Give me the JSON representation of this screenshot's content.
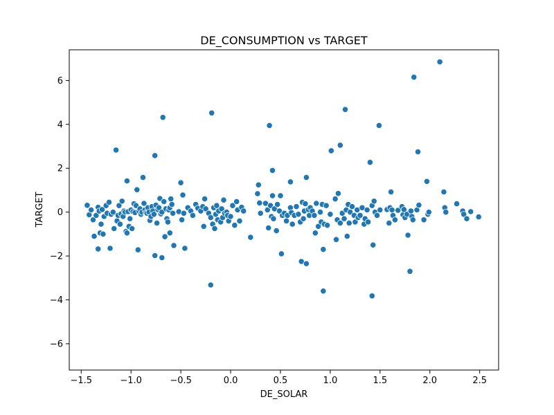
{
  "chart_data": {
    "type": "scatter",
    "title": "DE_CONSUMPTION vs TARGET",
    "xlabel": "DE_SOLAR",
    "ylabel": "TARGET",
    "xlim": [
      -1.62,
      2.69
    ],
    "ylim": [
      -7.2,
      7.4
    ],
    "xticks": [
      -1.5,
      -1.0,
      -0.5,
      0.0,
      0.5,
      1.0,
      1.5,
      2.0,
      2.5
    ],
    "xtick_labels": [
      "−1.5",
      "−1.0",
      "−0.5",
      "0.0",
      "0.5",
      "1.0",
      "1.5",
      "2.0",
      "2.5"
    ],
    "yticks": [
      -6,
      -4,
      -2,
      0,
      2,
      4,
      6
    ],
    "ytick_labels": [
      "−6",
      "−4",
      "−2",
      "0",
      "2",
      "4",
      "6"
    ],
    "grid": false,
    "legend": false,
    "marker_color": "#1f77b4",
    "points": [
      [
        -1.44,
        0.31
      ],
      [
        -1.42,
        -0.12
      ],
      [
        -1.4,
        0.1
      ],
      [
        -1.38,
        -0.35
      ],
      [
        -1.37,
        -1.1
      ],
      [
        -1.35,
        -0.15
      ],
      [
        -1.33,
        0.22
      ],
      [
        -1.33,
        -1.68
      ],
      [
        -1.32,
        0.05
      ],
      [
        -1.31,
        -0.95
      ],
      [
        -1.3,
        -0.55
      ],
      [
        -1.29,
        0.12
      ],
      [
        -1.28,
        -1.0
      ],
      [
        -1.27,
        -0.2
      ],
      [
        -1.25,
        0.3
      ],
      [
        -1.24,
        -0.05
      ],
      [
        -1.22,
        0.45
      ],
      [
        -1.21,
        -1.65
      ],
      [
        -1.2,
        -0.1
      ],
      [
        -1.18,
        0.0
      ],
      [
        -1.17,
        -0.75
      ],
      [
        -1.15,
        2.83
      ],
      [
        -1.14,
        -0.4
      ],
      [
        -1.13,
        -0.15
      ],
      [
        -1.12,
        0.3
      ],
      [
        -1.11,
        -0.55
      ],
      [
        -1.1,
        -0.08
      ],
      [
        -1.09,
        0.5
      ],
      [
        -1.08,
        -0.2
      ],
      [
        -1.07,
        0.05
      ],
      [
        -1.06,
        0.0
      ],
      [
        -1.05,
        -0.88
      ],
      [
        -1.04,
        -0.95
      ],
      [
        -1.04,
        1.42
      ],
      [
        -1.03,
        0.02
      ],
      [
        -1.02,
        -0.65
      ],
      [
        -1.01,
        -0.3
      ],
      [
        -1.0,
        0.1
      ],
      [
        -0.99,
        -0.75
      ],
      [
        -0.98,
        0.02
      ],
      [
        -0.97,
        0.38
      ],
      [
        -0.96,
        -0.02
      ],
      [
        -0.95,
        0.3
      ],
      [
        -0.94,
        1.02
      ],
      [
        -0.93,
        -1.72
      ],
      [
        -0.92,
        0.05
      ],
      [
        -0.91,
        0.15
      ],
      [
        -0.9,
        -0.1
      ],
      [
        -0.89,
        0.0
      ],
      [
        -0.88,
        1.58
      ],
      [
        -0.87,
        0.4
      ],
      [
        -0.86,
        0.1
      ],
      [
        -0.85,
        -0.02
      ],
      [
        -0.84,
        -0.05
      ],
      [
        -0.83,
        0.2
      ],
      [
        -0.82,
        0.0
      ],
      [
        -0.81,
        -0.38
      ],
      [
        -0.8,
        -0.2
      ],
      [
        -0.79,
        0.25
      ],
      [
        -0.78,
        0.05
      ],
      [
        -0.77,
        -0.1
      ],
      [
        -0.76,
        2.58
      ],
      [
        -0.76,
        -1.98
      ],
      [
        -0.75,
        0.32
      ],
      [
        -0.74,
        -0.5
      ],
      [
        -0.73,
        0.12
      ],
      [
        -0.72,
        0.2
      ],
      [
        -0.71,
        0.62
      ],
      [
        -0.7,
        -0.08
      ],
      [
        -0.69,
        0.0
      ],
      [
        -0.69,
        -2.08
      ],
      [
        -0.68,
        4.32
      ],
      [
        -0.67,
        0.48
      ],
      [
        -0.66,
        -1.12
      ],
      [
        -0.65,
        0.15
      ],
      [
        -0.64,
        -0.3
      ],
      [
        -0.63,
        -0.45
      ],
      [
        -0.62,
        0.1
      ],
      [
        -0.61,
        0.2
      ],
      [
        -0.61,
        -0.95
      ],
      [
        -0.6,
        0.6
      ],
      [
        -0.59,
        0.35
      ],
      [
        -0.58,
        -0.05
      ],
      [
        -0.57,
        -1.52
      ],
      [
        -0.52,
        0.02
      ],
      [
        -0.5,
        1.34
      ],
      [
        -0.49,
        -0.35
      ],
      [
        -0.48,
        0.78
      ],
      [
        -0.47,
        -0.05
      ],
      [
        -0.46,
        -1.65
      ],
      [
        -0.43,
        0.2
      ],
      [
        -0.4,
        0.05
      ],
      [
        -0.38,
        -0.15
      ],
      [
        -0.35,
        0.35
      ],
      [
        -0.33,
        0.18
      ],
      [
        -0.3,
        0.05
      ],
      [
        -0.28,
        0.25
      ],
      [
        -0.27,
        -0.65
      ],
      [
        -0.26,
        0.6
      ],
      [
        -0.25,
        0.15
      ],
      [
        -0.22,
        -0.05
      ],
      [
        -0.2,
        -0.25
      ],
      [
        -0.2,
        -3.32
      ],
      [
        -0.19,
        4.52
      ],
      [
        -0.18,
        -0.55
      ],
      [
        -0.17,
        0.2
      ],
      [
        -0.16,
        -0.75
      ],
      [
        -0.15,
        -0.1
      ],
      [
        -0.14,
        0.3
      ],
      [
        -0.13,
        -0.35
      ],
      [
        -0.12,
        0.05
      ],
      [
        -0.1,
        -0.45
      ],
      [
        -0.09,
        0.15
      ],
      [
        -0.08,
        -0.25
      ],
      [
        -0.07,
        0.55
      ],
      [
        -0.06,
        -0.05
      ],
      [
        -0.04,
        0.0
      ],
      [
        -0.03,
        -0.15
      ],
      [
        -0.02,
        -0.4
      ],
      [
        0.0,
        -0.2
      ],
      [
        0.02,
        0.3
      ],
      [
        0.04,
        -0.6
      ],
      [
        0.06,
        0.48
      ],
      [
        0.07,
        0.1
      ],
      [
        0.09,
        -0.4
      ],
      [
        0.11,
        0.22
      ],
      [
        0.13,
        0.05
      ],
      [
        0.2,
        -1.15
      ],
      [
        0.27,
        0.84
      ],
      [
        0.28,
        1.24
      ],
      [
        0.29,
        0.42
      ],
      [
        0.3,
        -0.05
      ],
      [
        0.35,
        0.4
      ],
      [
        0.37,
        0.1
      ],
      [
        0.38,
        -0.72
      ],
      [
        0.39,
        3.95
      ],
      [
        0.4,
        0.3
      ],
      [
        0.41,
        -0.2
      ],
      [
        0.42,
        0.75
      ],
      [
        0.42,
        1.9
      ],
      [
        0.43,
        -0.3
      ],
      [
        0.44,
        0.15
      ],
      [
        0.46,
        -0.85
      ],
      [
        0.47,
        0.35
      ],
      [
        0.49,
        0.05
      ],
      [
        0.5,
        0.75
      ],
      [
        0.51,
        -1.9
      ],
      [
        0.52,
        -0.15
      ],
      [
        0.54,
        -0.05
      ],
      [
        0.56,
        -0.4
      ],
      [
        0.57,
        -0.15
      ],
      [
        0.6,
        1.38
      ],
      [
        0.6,
        0.2
      ],
      [
        0.61,
        -0.02
      ],
      [
        0.62,
        -0.55
      ],
      [
        0.64,
        -0.15
      ],
      [
        0.66,
        0.25
      ],
      [
        0.68,
        -0.1
      ],
      [
        0.7,
        -0.45
      ],
      [
        0.71,
        -2.25
      ],
      [
        0.72,
        0.45
      ],
      [
        0.73,
        -0.3
      ],
      [
        0.74,
        0.05
      ],
      [
        0.75,
        0.38
      ],
      [
        0.76,
        1.58
      ],
      [
        0.76,
        -2.35
      ],
      [
        0.78,
        0.12
      ],
      [
        0.79,
        -0.15
      ],
      [
        0.8,
        0.2
      ],
      [
        0.82,
        0.05
      ],
      [
        0.84,
        -0.15
      ],
      [
        0.85,
        -0.95
      ],
      [
        0.86,
        0.4
      ],
      [
        0.88,
        -0.65
      ],
      [
        0.9,
        0.0
      ],
      [
        0.91,
        -0.45
      ],
      [
        0.92,
        0.35
      ],
      [
        0.93,
        -3.6
      ],
      [
        0.93,
        -1.7
      ],
      [
        0.94,
        -0.55
      ],
      [
        0.96,
        0.3
      ],
      [
        0.97,
        -0.6
      ],
      [
        1.0,
        -0.1
      ],
      [
        1.01,
        2.8
      ],
      [
        1.05,
        0.6
      ],
      [
        1.06,
        -1.25
      ],
      [
        1.07,
        -0.35
      ],
      [
        1.08,
        0.85
      ],
      [
        1.1,
        3.05
      ],
      [
        1.1,
        -0.5
      ],
      [
        1.12,
        -0.05
      ],
      [
        1.14,
        -0.3
      ],
      [
        1.15,
        4.68
      ],
      [
        1.16,
        0.1
      ],
      [
        1.17,
        -1.1
      ],
      [
        1.18,
        0.35
      ],
      [
        1.19,
        -0.5
      ],
      [
        1.2,
        0.0
      ],
      [
        1.22,
        0.25
      ],
      [
        1.24,
        -0.15
      ],
      [
        1.25,
        -0.45
      ],
      [
        1.27,
        0.1
      ],
      [
        1.28,
        -0.25
      ],
      [
        1.3,
        -0.15
      ],
      [
        1.32,
        0.2
      ],
      [
        1.34,
        -0.55
      ],
      [
        1.35,
        -0.3
      ],
      [
        1.37,
        0.1
      ],
      [
        1.38,
        -0.45
      ],
      [
        1.4,
        2.27
      ],
      [
        1.42,
        -3.82
      ],
      [
        1.42,
        0.3
      ],
      [
        1.43,
        -1.5
      ],
      [
        1.44,
        0.5
      ],
      [
        1.45,
        0.0
      ],
      [
        1.47,
        -0.15
      ],
      [
        1.49,
        3.95
      ],
      [
        1.5,
        0.1
      ],
      [
        1.57,
        0.12
      ],
      [
        1.59,
        -0.5
      ],
      [
        1.6,
        0.2
      ],
      [
        1.61,
        0.92
      ],
      [
        1.62,
        0.1
      ],
      [
        1.63,
        -0.15
      ],
      [
        1.65,
        -0.35
      ],
      [
        1.68,
        0.08
      ],
      [
        1.72,
        0.25
      ],
      [
        1.73,
        -0.12
      ],
      [
        1.74,
        0.12
      ],
      [
        1.75,
        -0.25
      ],
      [
        1.77,
        -0.1
      ],
      [
        1.78,
        -1.05
      ],
      [
        1.8,
        -2.7
      ],
      [
        1.81,
        0.05
      ],
      [
        1.82,
        -0.2
      ],
      [
        1.83,
        -0.35
      ],
      [
        1.84,
        6.15
      ],
      [
        1.87,
        0.1
      ],
      [
        1.88,
        2.75
      ],
      [
        1.89,
        0.32
      ],
      [
        1.94,
        -0.35
      ],
      [
        1.97,
        1.4
      ],
      [
        1.98,
        -0.1
      ],
      [
        1.99,
        0.0
      ],
      [
        2.1,
        6.85
      ],
      [
        2.14,
        0.92
      ],
      [
        2.15,
        0.2
      ],
      [
        2.16,
        0.0
      ],
      [
        2.27,
        0.38
      ],
      [
        2.33,
        0.05
      ],
      [
        2.34,
        -0.1
      ],
      [
        2.37,
        -0.3
      ],
      [
        2.41,
        0.02
      ],
      [
        2.49,
        -0.22
      ]
    ]
  }
}
